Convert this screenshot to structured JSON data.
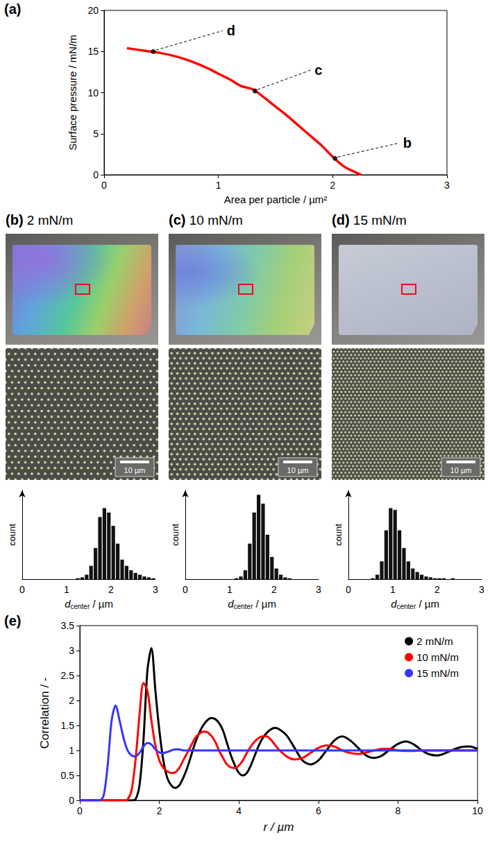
{
  "chart_data": [
    {
      "type": "line",
      "panel_label": "(a)",
      "xlabel": "Area per particle / µm²",
      "ylabel": "Surface pressure / mN/m",
      "x": [
        0.2,
        0.3,
        0.4,
        0.5,
        0.6,
        0.7,
        0.8,
        0.9,
        1.0,
        1.1,
        1.2,
        1.3,
        1.4,
        1.5,
        1.6,
        1.7,
        1.8,
        1.9,
        2.0,
        2.1,
        2.2,
        2.25
      ],
      "values": [
        15.4,
        15.2,
        15.0,
        14.8,
        14.5,
        14.1,
        13.6,
        13.0,
        12.3,
        11.6,
        10.8,
        10.4,
        9.4,
        8.3,
        7.2,
        6.0,
        4.8,
        3.6,
        2.2,
        1.0,
        0.3,
        0
      ],
      "color": "#ff0000",
      "xlim": [
        0,
        3
      ],
      "xticks": [
        0,
        1,
        2,
        3
      ],
      "ylim": [
        0,
        20
      ],
      "yticks": [
        0,
        5,
        10,
        15,
        20
      ],
      "grid": false,
      "annotations": [
        {
          "text": "b",
          "x": 2.02,
          "y": 2.0
        },
        {
          "text": "c",
          "x": 1.32,
          "y": 10.2
        },
        {
          "text": "d",
          "x": 0.43,
          "y": 15.0
        }
      ]
    },
    {
      "type": "histogram",
      "panel_label": "(b)",
      "title": "2 mN/m",
      "scale_bar": "10 µm",
      "xlabel": "dcenter / µm",
      "xlabel_subscript": "center",
      "ylabel": "count",
      "bins": [
        0,
        0.1,
        0.2,
        0.3,
        0.4,
        0.5,
        0.6,
        0.7,
        0.8,
        0.9,
        1.0,
        1.1,
        1.2,
        1.3,
        1.4,
        1.5,
        1.6,
        1.7,
        1.8,
        1.9,
        2.0,
        2.1,
        2.2,
        2.3,
        2.4,
        2.5,
        2.6,
        2.7,
        2.8,
        2.9,
        3.0
      ],
      "counts": [
        0,
        0,
        0,
        0,
        0,
        0,
        0,
        0,
        0,
        0,
        0,
        0,
        1,
        2,
        5,
        15,
        35,
        70,
        80,
        75,
        60,
        40,
        22,
        15,
        10,
        7,
        5,
        3,
        2,
        1
      ],
      "color": "#111111",
      "xlim": [
        0,
        3
      ],
      "xticks": [
        0,
        1,
        2,
        3
      ],
      "ylim": [
        0,
        100
      ],
      "tick_labels": "x",
      "grid": false
    },
    {
      "type": "histogram",
      "panel_label": "(c)",
      "title": "10 mN/m",
      "scale_bar": "10 µm",
      "xlabel": "dcenter / µm",
      "xlabel_subscript": "center",
      "ylabel": "count",
      "bins": [
        0,
        0.1,
        0.2,
        0.3,
        0.4,
        0.5,
        0.6,
        0.7,
        0.8,
        0.9,
        1.0,
        1.1,
        1.2,
        1.3,
        1.4,
        1.5,
        1.6,
        1.7,
        1.8,
        1.9,
        2.0,
        2.1,
        2.2,
        2.3,
        2.4,
        2.5,
        2.6,
        2.7,
        2.8,
        2.9,
        3.0
      ],
      "counts": [
        0,
        0,
        0,
        0,
        0,
        0,
        0,
        0,
        0,
        0,
        0,
        1,
        3,
        10,
        40,
        75,
        95,
        85,
        50,
        25,
        12,
        5,
        2,
        1,
        0,
        0,
        0,
        0,
        0,
        0
      ],
      "color": "#111111",
      "xlim": [
        0,
        3
      ],
      "xticks": [
        0,
        1,
        2,
        3
      ],
      "ylim": [
        0,
        100
      ],
      "tick_labels": "x",
      "grid": false
    },
    {
      "type": "histogram",
      "panel_label": "(d)",
      "title": "15 mN/m",
      "scale_bar": "10 µm",
      "xlabel": "dcenter / µm",
      "xlabel_subscript": "center",
      "ylabel": "count",
      "bins": [
        0,
        0.1,
        0.2,
        0.3,
        0.4,
        0.5,
        0.6,
        0.7,
        0.8,
        0.9,
        1.0,
        1.1,
        1.2,
        1.3,
        1.4,
        1.5,
        1.6,
        1.7,
        1.8,
        1.9,
        2.0,
        2.1,
        2.2,
        2.3,
        2.4,
        2.5,
        2.6,
        2.7,
        2.8,
        2.9,
        3.0
      ],
      "counts": [
        0,
        0,
        0,
        0,
        0,
        1,
        5,
        20,
        55,
        80,
        78,
        55,
        35,
        20,
        12,
        8,
        5,
        3,
        2,
        1,
        1,
        1,
        0,
        1,
        0,
        0,
        0,
        0,
        0,
        0
      ],
      "color": "#111111",
      "xlim": [
        0,
        3
      ],
      "xticks": [
        0,
        1,
        2,
        3
      ],
      "ylim": [
        0,
        100
      ],
      "tick_labels": "x",
      "grid": false
    },
    {
      "type": "line",
      "panel_label": "(e)",
      "xlabel": "r / µm",
      "ylabel": "Correlation / -",
      "x": [
        0,
        0.1,
        0.2,
        0.3,
        0.4,
        0.5,
        0.6,
        0.7,
        0.8,
        0.9,
        1.0,
        1.1,
        1.2,
        1.3,
        1.4,
        1.5,
        1.6,
        1.7,
        1.8,
        1.9,
        2.0,
        2.1,
        2.2,
        2.3,
        2.4,
        2.5,
        2.6,
        2.7,
        2.8,
        2.9,
        3.0,
        3.1,
        3.2,
        3.3,
        3.4,
        3.5,
        3.6,
        3.7,
        3.8,
        3.9,
        4.0,
        4.1,
        4.2,
        4.3,
        4.4,
        4.5,
        4.6,
        4.7,
        4.8,
        4.9,
        5.0,
        5.2,
        5.4,
        5.6,
        5.8,
        6.0,
        6.2,
        6.4,
        6.6,
        6.8,
        7.0,
        7.2,
        7.4,
        7.6,
        7.8,
        8.0,
        8.2,
        8.4,
        8.6,
        8.8,
        9.0,
        9.2,
        9.4,
        9.6,
        9.8,
        10.0
      ],
      "series": [
        {
          "name": "2 mN/m",
          "color": "#000000",
          "values": [
            0,
            0,
            0,
            0,
            0,
            0,
            0,
            0,
            0,
            0,
            0,
            0,
            0,
            0,
            0.02,
            0.3,
            1.2,
            2.6,
            3.05,
            2.2,
            1.4,
            0.8,
            0.45,
            0.3,
            0.25,
            0.3,
            0.45,
            0.65,
            0.9,
            1.15,
            1.35,
            1.5,
            1.6,
            1.65,
            1.63,
            1.55,
            1.4,
            1.15,
            0.9,
            0.7,
            0.55,
            0.5,
            0.55,
            0.7,
            0.9,
            1.1,
            1.25,
            1.35,
            1.42,
            1.45,
            1.43,
            1.3,
            1.05,
            0.8,
            0.72,
            0.8,
            1.0,
            1.2,
            1.28,
            1.2,
            1.05,
            0.9,
            0.85,
            0.9,
            1.02,
            1.13,
            1.18,
            1.12,
            1.0,
            0.92,
            0.9,
            0.95,
            1.02,
            1.07,
            1.08,
            1.03
          ]
        },
        {
          "name": "10 mN/m",
          "color": "#ff0000",
          "values": [
            0,
            0,
            0,
            0,
            0,
            0,
            0,
            0,
            0,
            0,
            0,
            0,
            0.02,
            0.2,
            0.8,
            1.7,
            2.35,
            2.2,
            1.6,
            1.1,
            0.8,
            0.65,
            0.58,
            0.55,
            0.56,
            0.65,
            0.8,
            0.95,
            1.1,
            1.25,
            1.33,
            1.38,
            1.37,
            1.3,
            1.18,
            1.0,
            0.85,
            0.72,
            0.66,
            0.65,
            0.7,
            0.8,
            0.95,
            1.08,
            1.18,
            1.25,
            1.28,
            1.28,
            1.22,
            1.12,
            1.02,
            0.88,
            0.82,
            0.85,
            0.95,
            1.05,
            1.1,
            1.08,
            1.0,
            0.95,
            0.93,
            0.96,
            1.0,
            1.03,
            1.03,
            1.0,
            0.99,
            0.99,
            1.0,
            1.0,
            1.0,
            1.0,
            1.0,
            1.0,
            1.0,
            1.0
          ]
        },
        {
          "name": "15 mN/m",
          "color": "#3535ff",
          "values": [
            0,
            0,
            0,
            0,
            0,
            0,
            0.1,
            0.7,
            1.6,
            1.9,
            1.6,
            1.25,
            1.0,
            0.9,
            0.88,
            0.95,
            1.08,
            1.15,
            1.12,
            1.02,
            0.96,
            0.95,
            0.97,
            1.0,
            1.02,
            1.02,
            1.0,
            1,
            1,
            1,
            1,
            1,
            1,
            1,
            1,
            1,
            1,
            1,
            1,
            1,
            1,
            1,
            1,
            1,
            1,
            1,
            1,
            1,
            1,
            1,
            1,
            1,
            1,
            1,
            1,
            1,
            1,
            1,
            1,
            1,
            1,
            1,
            1,
            1,
            1,
            1,
            1,
            1,
            1,
            1,
            1,
            1,
            1,
            1,
            1,
            1
          ]
        }
      ],
      "xlim": [
        0,
        10
      ],
      "xticks": [
        0,
        2,
        4,
        6,
        8,
        10
      ],
      "ylim": [
        0,
        3.5
      ],
      "yticks": [
        0,
        0.5,
        1,
        1.5,
        2,
        2.5,
        3,
        3.5
      ],
      "legend": "upper right",
      "marker": "circle",
      "grid": false
    }
  ]
}
